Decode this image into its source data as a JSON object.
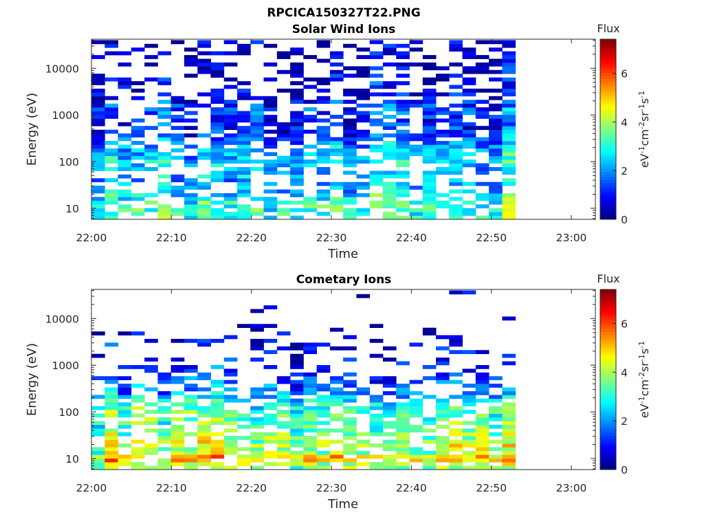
{
  "figure": {
    "title": "RPCICA150327T22.PNG"
  },
  "colors": {
    "colormap": "jet",
    "axis": "#262626",
    "background": "#ffffff"
  },
  "chart_data": [
    {
      "type": "heatmap",
      "title": "Solar Wind Ions",
      "xlabel": "Time",
      "ylabel": "Energy (eV)",
      "yscale": "log",
      "xticks": [
        "22:00",
        "22:10",
        "22:20",
        "22:30",
        "22:40",
        "22:50",
        "23:00"
      ],
      "xlim": [
        "22:00",
        "23:03"
      ],
      "yticks": [
        10,
        100,
        1000,
        10000
      ],
      "ylim": [
        5.8,
        42000
      ],
      "data_extent": [
        "22:00",
        "22:53"
      ],
      "colorbar": {
        "label": "Flux",
        "unit_label": "eV-1cm-2sr-1s-1",
        "ticks": [
          0,
          2,
          4,
          6
        ],
        "range": [
          0,
          7.4
        ]
      },
      "profile": {
        "description": "approximate flux level (0-7.4) per energy band, averaged over time",
        "energy_eV": [
          8,
          12,
          20,
          35,
          60,
          100,
          160,
          250,
          400,
          700,
          1200,
          2500,
          5000,
          10000,
          25000
        ],
        "flux": [
          3.2,
          3.4,
          2.6,
          2.3,
          2.2,
          2.6,
          2.4,
          1.9,
          1.3,
          1.0,
          1.6,
          0.9,
          0.6,
          0.5,
          0.4
        ],
        "coverage": [
          0.8,
          0.7,
          0.75,
          0.6,
          0.4,
          0.95,
          0.9,
          0.9,
          0.75,
          0.8,
          0.8,
          0.5,
          0.45,
          0.45,
          0.4
        ]
      }
    },
    {
      "type": "heatmap",
      "title": "Cometary Ions",
      "xlabel": "Time",
      "ylabel": "Energy (eV)",
      "yscale": "log",
      "xticks": [
        "22:00",
        "22:10",
        "22:20",
        "22:30",
        "22:40",
        "22:50",
        "23:00"
      ],
      "xlim": [
        "22:00",
        "23:03"
      ],
      "yticks": [
        10,
        100,
        1000,
        10000
      ],
      "ylim": [
        5.8,
        42000
      ],
      "data_extent": [
        "22:00",
        "22:53"
      ],
      "colorbar": {
        "label": "Flux",
        "unit_label": "eV-1cm-2sr-1s-1",
        "ticks": [
          0,
          2,
          4,
          6
        ],
        "range": [
          0,
          7.4
        ]
      },
      "profile": {
        "description": "approximate flux level (0-7.4) per energy band, averaged over time",
        "energy_eV": [
          7,
          10,
          14,
          20,
          30,
          45,
          70,
          100,
          150,
          220,
          350,
          600,
          1000,
          1800,
          3000,
          8000
        ],
        "flux": [
          3.8,
          5.3,
          3.6,
          4.3,
          3.7,
          3.4,
          3.4,
          3.3,
          3.0,
          2.2,
          1.6,
          1.2,
          1.0,
          0.8,
          0.5,
          0.4
        ],
        "coverage": [
          0.75,
          0.95,
          0.9,
          0.85,
          0.85,
          0.8,
          0.85,
          0.8,
          0.75,
          0.75,
          0.6,
          0.35,
          0.3,
          0.3,
          0.3,
          0.05
        ]
      }
    }
  ]
}
